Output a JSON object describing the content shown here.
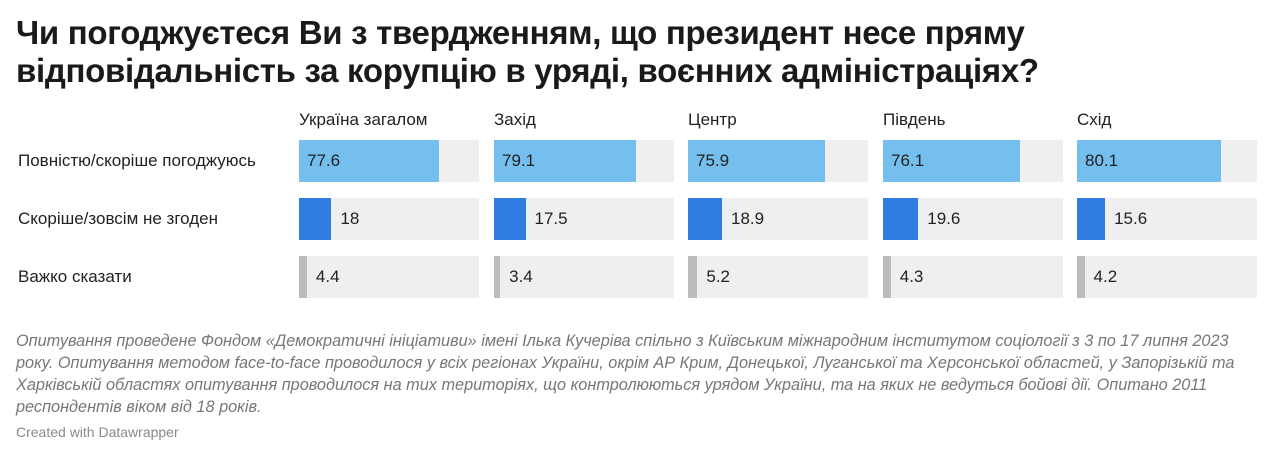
{
  "title": "Чи погоджуєтеся Ви з твердженням, що президент несе пряму відповідальність за корупцію в уряді, воєнних адміністраціях?",
  "note": "Опитування проведене Фондом «Демократичні ініціативи» імені Ілька Кучеріва спільно з Київським міжнародним інститутом соціології з 3 по 17 липня 2023 року. Опитування методом face-to-face проводилося у всіх регіонах України, окрім АР Крим, Донецької, Луганської та Херсонської областей, у Запорізькій та Харківській областях опитування проводилося на тих територіях, що контролюються урядом України, та на яких не ведуться бойові дії. Опитано 2011 респондентів віком від 18 років.",
  "credit": "Created with Datawrapper",
  "chart_data": {
    "type": "bar",
    "orientation": "horizontal",
    "layout": "small-multiples",
    "categories": [
      "Повністю/скоріше погоджуюсь",
      "Скоріше/зовсім не згоден",
      "Важко сказати"
    ],
    "panels": [
      {
        "name": "Україна загалом",
        "values": [
          77.6,
          18,
          4.4
        ]
      },
      {
        "name": "Захід",
        "values": [
          79.1,
          17.5,
          3.4
        ]
      },
      {
        "name": "Центр",
        "values": [
          75.9,
          18.9,
          5.2
        ]
      },
      {
        "name": "Південь",
        "values": [
          76.1,
          19.6,
          4.3
        ]
      },
      {
        "name": "Схід",
        "values": [
          80.1,
          15.6,
          4.2
        ]
      }
    ],
    "xlim": [
      0,
      100
    ],
    "colors": [
      "#74bfed",
      "#2f7de1",
      "#bcbcbc"
    ],
    "track_color": "#efefef"
  }
}
